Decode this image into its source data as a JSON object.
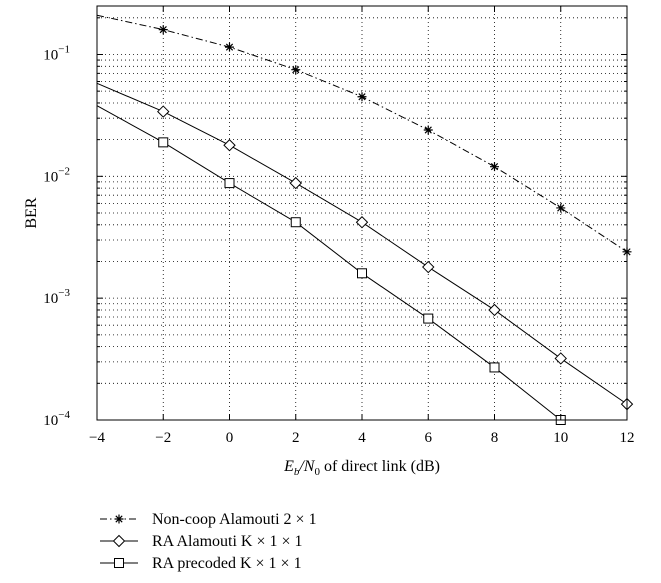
{
  "chart_data": {
    "type": "line",
    "xlabel": {
      "pre": "E",
      "sub1": "b",
      "mid": "/N",
      "sub2": "0",
      "post": " of direct link (dB)"
    },
    "ylabel": "BER",
    "xlim": [
      -4,
      12
    ],
    "ylim": [
      0.0001,
      0.25
    ],
    "yscale": "log",
    "grid": true,
    "legend_position": "below",
    "x_ticks": [
      -4,
      -2,
      0,
      2,
      4,
      6,
      8,
      10,
      12
    ],
    "x_tick_labels": [
      "−4",
      "−2",
      "0",
      "2",
      "4",
      "6",
      "8",
      "10",
      "12"
    ],
    "y_ticks": [
      {
        "value": 0.1,
        "base": "10",
        "exp": "−1"
      },
      {
        "value": 0.01,
        "base": "10",
        "exp": "−2"
      },
      {
        "value": 0.001,
        "base": "10",
        "exp": "−3"
      },
      {
        "value": 0.0001,
        "base": "10",
        "exp": "−4"
      }
    ],
    "series": [
      {
        "name": "Non-coop Alamouti 2 × 1",
        "line_style": "dashdot",
        "marker": "star",
        "x": [
          -4,
          -2,
          0,
          2,
          4,
          6,
          8,
          10,
          12
        ],
        "y": [
          0.21,
          0.16,
          0.115,
          0.075,
          0.045,
          0.024,
          0.012,
          0.0055,
          0.0024
        ],
        "marker_x": [
          -2,
          0,
          2,
          4,
          6,
          8,
          10,
          12
        ]
      },
      {
        "name": "RA Alamouti K × 1 × 1",
        "line_style": "solid",
        "marker": "diamond",
        "x": [
          -4,
          -2,
          0,
          2,
          4,
          6,
          8,
          10,
          12
        ],
        "y": [
          0.058,
          0.034,
          0.018,
          0.0088,
          0.0042,
          0.0018,
          0.0008,
          0.00032,
          0.000135
        ],
        "marker_x": [
          -2,
          0,
          2,
          4,
          6,
          8,
          10,
          12
        ]
      },
      {
        "name": "RA precoded K × 1 × 1",
        "line_style": "solid",
        "marker": "square",
        "x": [
          -4,
          -2,
          0,
          2,
          4,
          6,
          8,
          10
        ],
        "y": [
          0.038,
          0.019,
          0.0088,
          0.0042,
          0.0016,
          0.00068,
          0.00027,
          0.0001
        ],
        "marker_x": [
          -2,
          0,
          2,
          4,
          6,
          8,
          10
        ]
      }
    ]
  }
}
